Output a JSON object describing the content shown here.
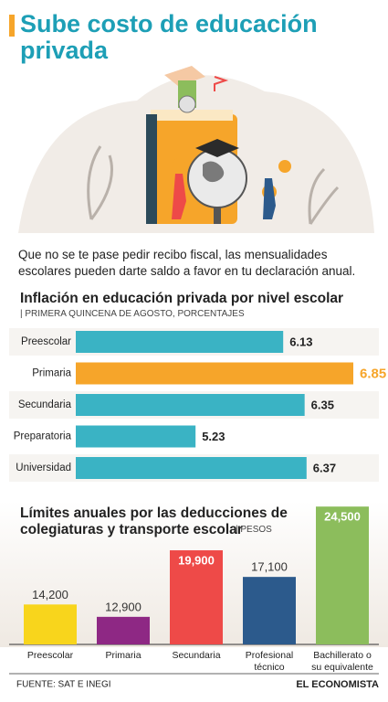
{
  "title": "Sube costo de educación privada",
  "intro": "Que no se te pase pedir recibo fiscal, las mensualidades escolares pueden darte saldo a favor en tu declaración anual.",
  "chart_data": [
    {
      "type": "bar",
      "orientation": "horizontal",
      "title": "Inflación en educación privada por nivel escolar",
      "subtitle": "| PRIMERA QUINCENA DE AGOSTO, PORCENTAJES",
      "categories": [
        "Preescolar",
        "Primaria",
        "Secundaria",
        "Preparatoria",
        "Universidad"
      ],
      "values": [
        6.13,
        6.85,
        6.35,
        5.23,
        6.37
      ],
      "colors": [
        "#3ab3c4",
        "#f6a52a",
        "#3ab3c4",
        "#3ab3c4",
        "#3ab3c4"
      ],
      "xlim": [
        4,
        7
      ]
    },
    {
      "type": "bar",
      "orientation": "vertical",
      "title": "Límites anuales por las deducciones de colegiaturas y transporte escolar",
      "subtitle": "| PESOS",
      "categories": [
        "Preescolar",
        "Primaria",
        "Secundaria",
        "Profesional técnico",
        "Bachillerato o su equivalente"
      ],
      "values": [
        14200,
        12900,
        19900,
        17100,
        24500
      ],
      "value_labels": [
        "14,200",
        "12,900",
        "19,900",
        "17,100",
        "24,500"
      ],
      "colors": [
        "#f8d51c",
        "#8e2884",
        "#ee4a48",
        "#2c5a8c",
        "#8cbd5c"
      ],
      "ylim": [
        10000,
        25000
      ]
    }
  ],
  "source": "FUENTE: SAT E INEGI",
  "brand": "EL ECONOMISTA"
}
